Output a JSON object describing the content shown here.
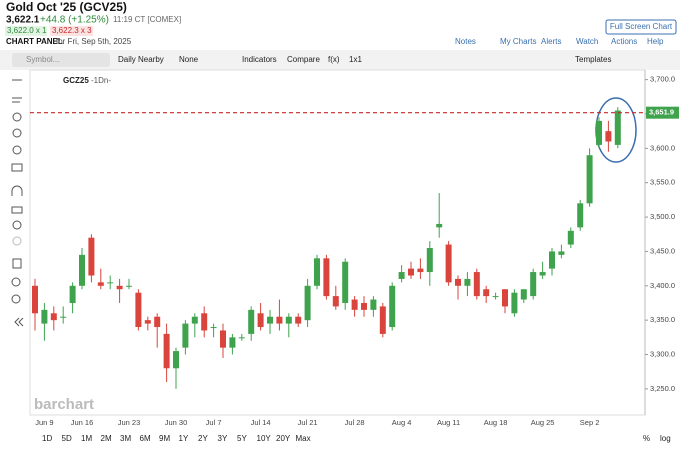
{
  "ui": {
    "title": "Gold Oct '25 (GCV25)",
    "price": "3,622.1",
    "change": "+44.8 (+1.25%)",
    "time": "11:19 CT [COMEX]",
    "bid": "3,622.0 x 1",
    "ask": "3,622.3 x 3",
    "panel": "CHART PANEL",
    "panel_date": "for Fri, Sep 5th, 2025",
    "full_screen": "Full Screen Chart",
    "links": [
      "Notes",
      "My Charts",
      "Alerts",
      "Watch",
      "Actions",
      "Help"
    ],
    "toolbar": [
      "Symbol...",
      "Daily Nearby",
      "None",
      "Indicators",
      "Compare",
      "f(x)",
      "1x1",
      "Templates"
    ],
    "symbol": "GCZ25",
    "symbol_period": "-1Dn-",
    "watermark": "barchart",
    "periods": [
      "1D",
      "5D",
      "1M",
      "2M",
      "3M",
      "6M",
      "9M",
      "1Y",
      "2Y",
      "3Y",
      "5Y",
      "10Y",
      "20Y",
      "Max"
    ],
    "scale_buttons": [
      "%",
      "log"
    ]
  },
  "chart_data": {
    "type": "candlestick",
    "categories": [
      null,
      "Jun 9",
      null,
      null,
      null,
      "Jun 16",
      null,
      null,
      null,
      null,
      "Jun 23",
      null,
      null,
      null,
      null,
      "Jun 30",
      null,
      null,
      null,
      "Jul 7",
      null,
      null,
      null,
      null,
      "Jul 14",
      null,
      null,
      null,
      null,
      "Jul 21",
      null,
      null,
      null,
      null,
      "Jul 28",
      null,
      null,
      null,
      null,
      "Aug 4",
      null,
      null,
      null,
      null,
      "Aug 11",
      null,
      null,
      null,
      null,
      "Aug 18",
      null,
      null,
      null,
      null,
      "Aug 25",
      null,
      null,
      null,
      null,
      "Sep 2",
      null,
      null,
      null
    ],
    "open": [
      3400,
      3345,
      3360,
      3355,
      3375,
      3400,
      3470,
      3405,
      3405,
      3400,
      3400,
      3390,
      3350,
      3355,
      3330,
      3280,
      3310,
      3345,
      3360,
      3340,
      3335,
      3310,
      3325,
      3330,
      3360,
      3345,
      3355,
      3345,
      3355,
      3350,
      3400,
      3440,
      3385,
      3375,
      3380,
      3375,
      3365,
      3370,
      3340,
      3410,
      3425,
      3425,
      3420,
      3485,
      3460,
      3410,
      3400,
      3420,
      3395,
      3385,
      3395,
      3360,
      3380,
      3385,
      3415,
      3425,
      3445,
      3460,
      3485,
      3520,
      3605,
      3625,
      3605
    ],
    "high": [
      3410,
      3375,
      3370,
      3370,
      3405,
      3455,
      3475,
      3425,
      3415,
      3410,
      3410,
      3395,
      3355,
      3360,
      3345,
      3310,
      3350,
      3360,
      3370,
      3345,
      3345,
      3330,
      3330,
      3370,
      3375,
      3365,
      3380,
      3360,
      3360,
      3410,
      3445,
      3445,
      3400,
      3440,
      3385,
      3385,
      3385,
      3375,
      3405,
      3430,
      3435,
      3440,
      3465,
      3535,
      3465,
      3415,
      3420,
      3425,
      3400,
      3390,
      3395,
      3395,
      3395,
      3425,
      3435,
      3455,
      3460,
      3485,
      3525,
      3600,
      3645,
      3640,
      3660
    ],
    "low": [
      3335,
      3320,
      3335,
      3345,
      3360,
      3395,
      3405,
      3395,
      3395,
      3375,
      3395,
      3335,
      3335,
      3310,
      3260,
      3250,
      3300,
      3325,
      3325,
      3325,
      3295,
      3300,
      3320,
      3320,
      3335,
      3330,
      3335,
      3325,
      3340,
      3340,
      3395,
      3380,
      3365,
      3365,
      3355,
      3355,
      3355,
      3325,
      3335,
      3405,
      3410,
      3410,
      3400,
      3470,
      3400,
      3380,
      3385,
      3380,
      3375,
      3380,
      3360,
      3355,
      3375,
      3380,
      3410,
      3415,
      3440,
      3455,
      3480,
      3515,
      3600,
      3595,
      3600
    ],
    "close": [
      3360,
      3365,
      3350,
      3355,
      3400,
      3445,
      3415,
      3400,
      3405,
      3395,
      3400,
      3340,
      3345,
      3340,
      3280,
      3305,
      3345,
      3355,
      3335,
      3340,
      3310,
      3325,
      3325,
      3365,
      3340,
      3355,
      3345,
      3355,
      3345,
      3400,
      3440,
      3385,
      3370,
      3435,
      3365,
      3365,
      3380,
      3330,
      3400,
      3420,
      3415,
      3420,
      3455,
      3490,
      3405,
      3400,
      3410,
      3385,
      3385,
      3385,
      3370,
      3390,
      3395,
      3420,
      3420,
      3450,
      3450,
      3480,
      3520,
      3590,
      3640,
      3610,
      3655
    ],
    "up_color": "#3fa34d",
    "down_color": "#d9443d",
    "last_price": {
      "value": 3651.9,
      "label": "3,651.9"
    },
    "last_price_color": "#c62828",
    "ylim": [
      3212,
      3714
    ],
    "yticks": [
      {
        "value": 3250,
        "label": "3,250.0"
      },
      {
        "value": 3300,
        "label": "3,300.0"
      },
      {
        "value": 3350,
        "label": "3,350.0"
      },
      {
        "value": 3400,
        "label": "3,400.0"
      },
      {
        "value": 3450,
        "label": "3,450.0"
      },
      {
        "value": 3500,
        "label": "3,500.0"
      },
      {
        "value": 3550,
        "label": "3,550.0"
      },
      {
        "value": 3600,
        "label": "3,600.0"
      },
      {
        "value": 3650,
        "label": "3,650.0"
      },
      {
        "value": 3700,
        "label": "3,700.0"
      }
    ]
  }
}
